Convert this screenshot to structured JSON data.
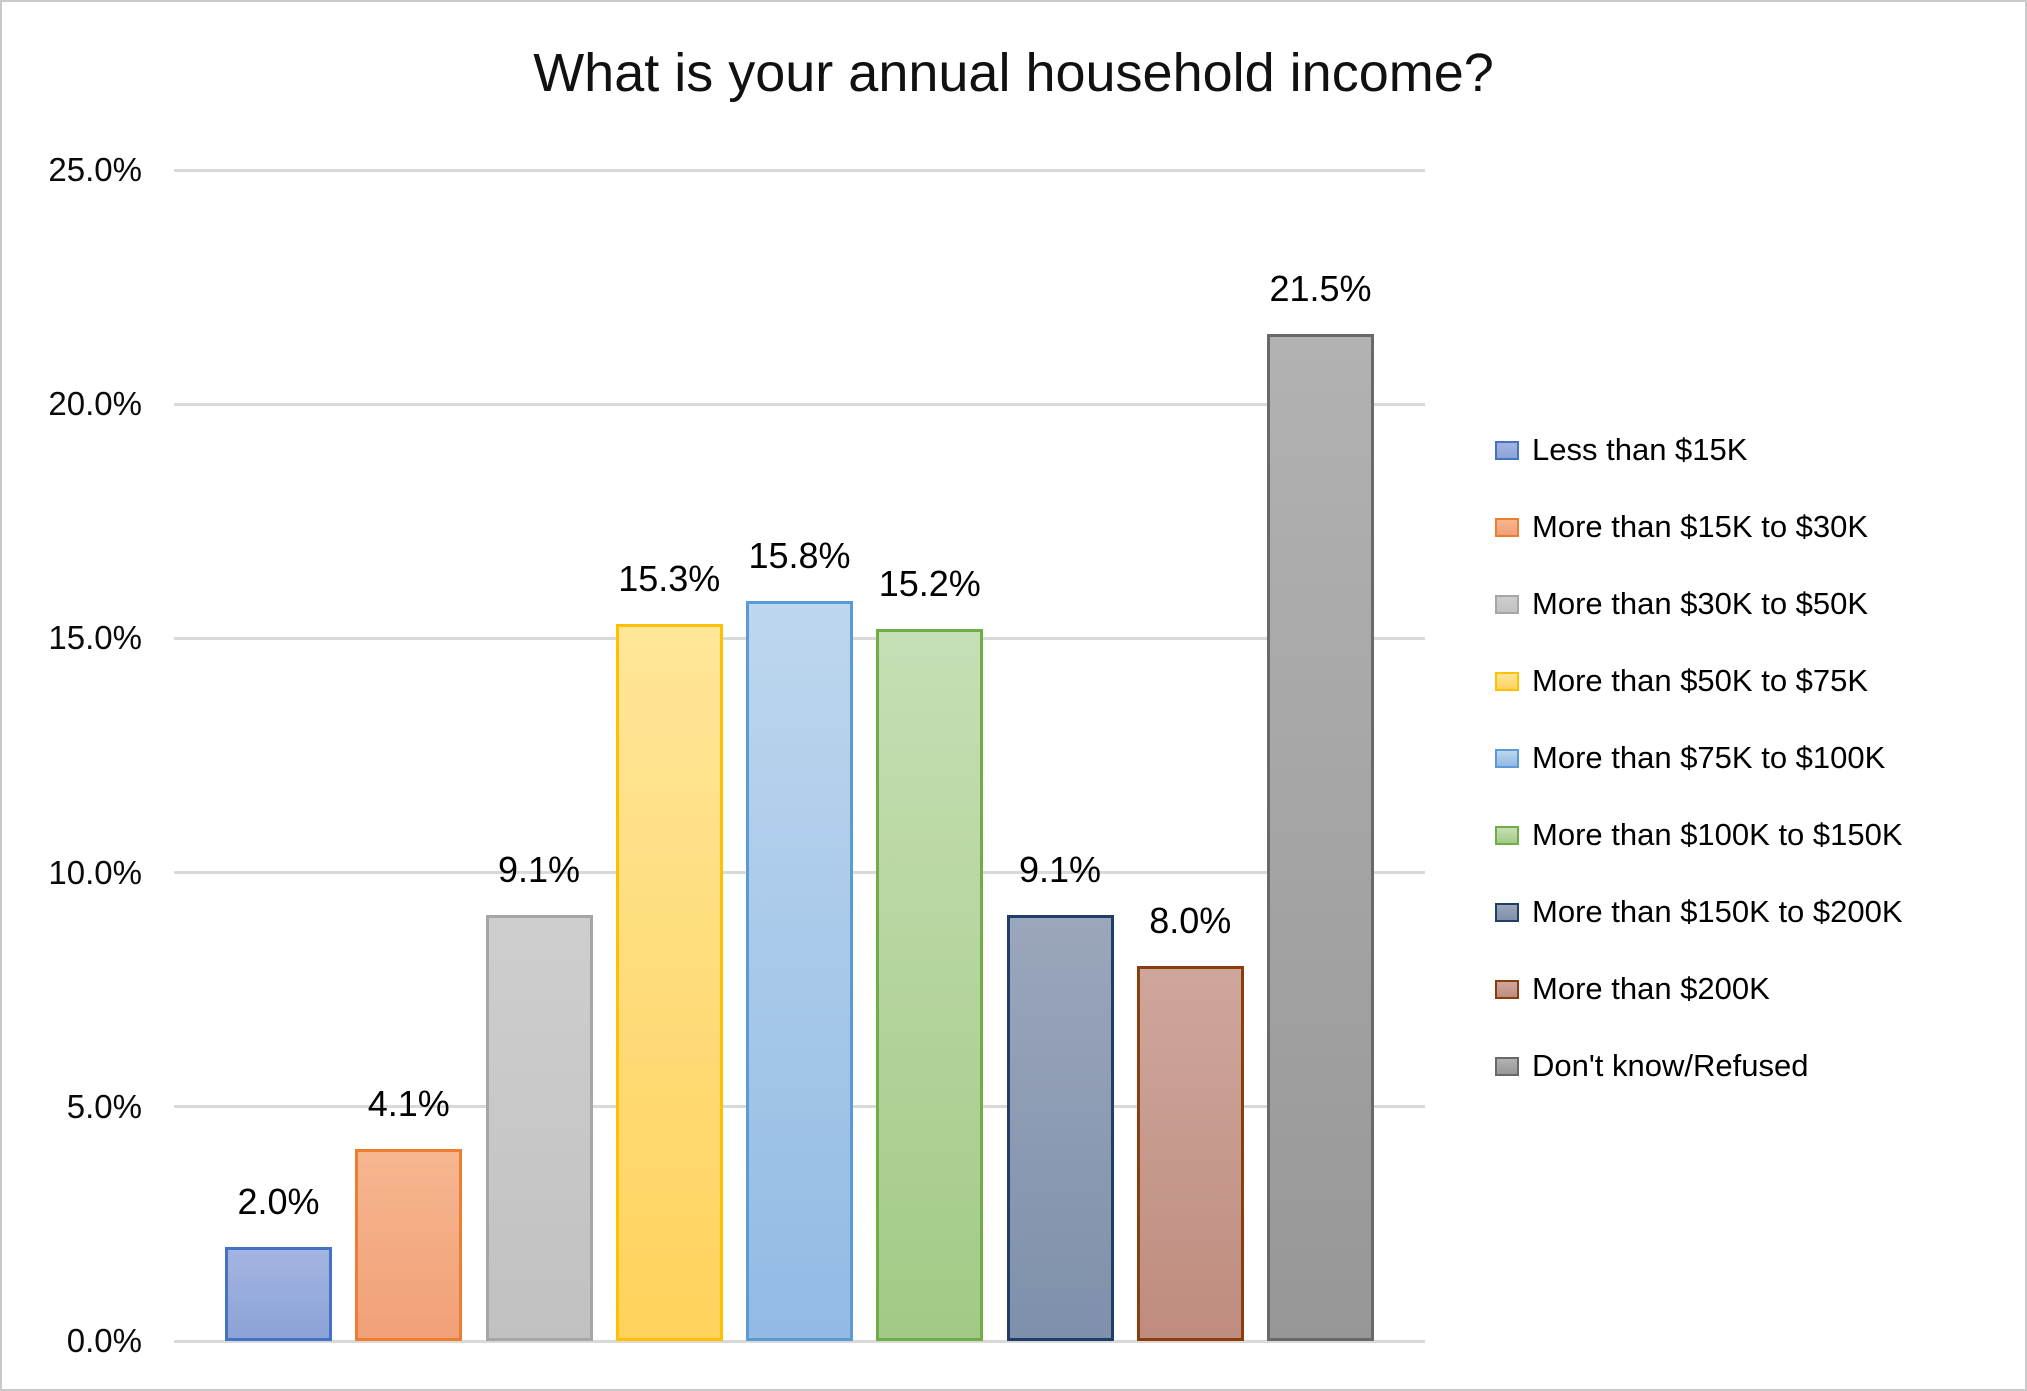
{
  "chart_data": {
    "type": "bar",
    "title": "What is your annual household income?",
    "categories": [
      "Less than $15K",
      "More than $15K to $30K",
      "More than $30K to $50K",
      "More than $50K to $75K",
      "More than $75K to $100K",
      "More than $100K to $150K",
      "More than $150K to $200K",
      "More than $200K",
      "Don't know/Refused"
    ],
    "values": [
      2.0,
      4.1,
      9.1,
      15.3,
      15.8,
      15.2,
      9.1,
      8.0,
      21.5
    ],
    "data_labels": [
      "2.0%",
      "4.1%",
      "9.1%",
      "15.3%",
      "15.8%",
      "15.2%",
      "9.1%",
      "8.0%",
      "21.5%"
    ],
    "xlabel": "",
    "ylabel": "",
    "ylim": [
      0,
      25
    ],
    "ytick_values": [
      0,
      5,
      10,
      15,
      20,
      25
    ],
    "ytick_labels": [
      "0.0%",
      "5.0%",
      "10.0%",
      "15.0%",
      "20.0%",
      "25.0%"
    ],
    "grid": true,
    "legend_position": "right",
    "bar_styles": [
      {
        "name": "less-than-15k",
        "fill_top": "#A3B4E1",
        "fill_bottom": "#8CA3D7",
        "border": "#4472C4"
      },
      {
        "name": "15k-to-30k",
        "fill_top": "#F6B68F",
        "fill_bottom": "#F1A078",
        "border": "#ED7D31"
      },
      {
        "name": "30k-to-50k",
        "fill_top": "#CECECE",
        "fill_bottom": "#C1C1C1",
        "border": "#A6A6A6"
      },
      {
        "name": "50k-to-75k",
        "fill_top": "#FFE699",
        "fill_bottom": "#FFD25C",
        "border": "#FFC000"
      },
      {
        "name": "75k-to-100k",
        "fill_top": "#BDD7EE",
        "fill_bottom": "#92BAE4",
        "border": "#5B9BD5"
      },
      {
        "name": "100k-to-150k",
        "fill_top": "#C6DFB5",
        "fill_bottom": "#A2CA85",
        "border": "#70AD47"
      },
      {
        "name": "150k-to-200k",
        "fill_top": "#9BA6BC",
        "fill_bottom": "#7E90AA",
        "border": "#1F3F68"
      },
      {
        "name": "more-than-200k",
        "fill_top": "#CFA69C",
        "fill_bottom": "#BF8C7F",
        "border": "#8C3D0C"
      },
      {
        "name": "dont-know-refused",
        "fill_top": "#B2B2B2",
        "fill_bottom": "#979797",
        "border": "#696969"
      }
    ],
    "gridline_color": "#D9D9D9",
    "text_color": "#000000",
    "frame_color": "#C9C9C9"
  }
}
